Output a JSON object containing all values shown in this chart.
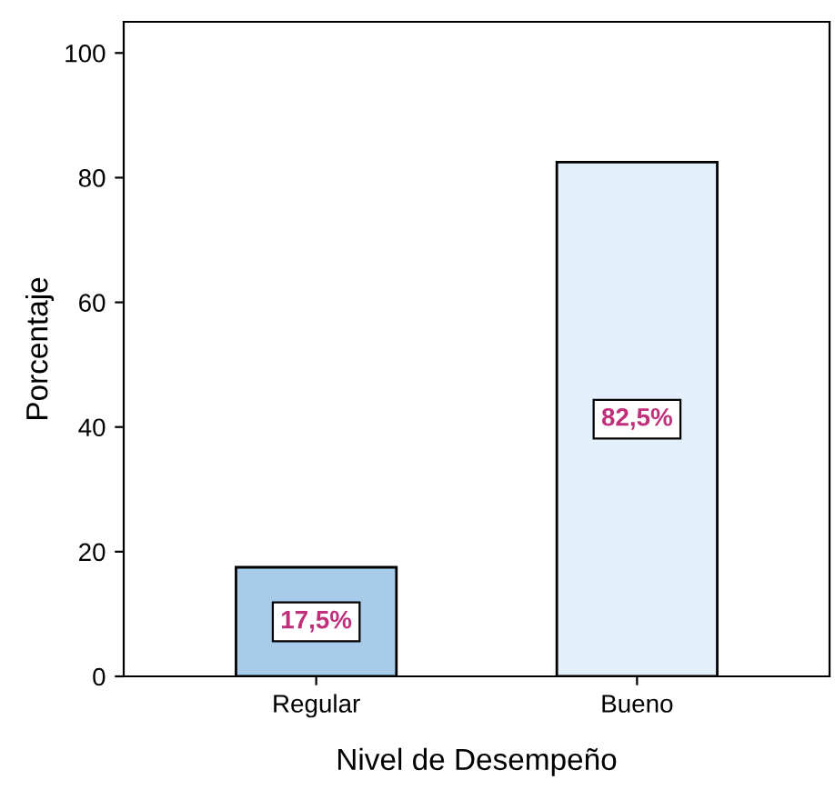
{
  "chart_data": {
    "type": "bar",
    "xlabel": "Nivel de Desempeño",
    "ylabel": "Porcentaje",
    "categories": [
      "Regular",
      "Bueno"
    ],
    "values": [
      17.5,
      82.5
    ],
    "colors": [
      "#a8cbea",
      "#e3effb"
    ],
    "value_labels": [
      "17,5%",
      "82,5%"
    ],
    "ylim": [
      0,
      105
    ],
    "yticks": [
      0,
      20,
      40,
      60,
      80,
      100
    ],
    "grid": false,
    "legend": false
  }
}
